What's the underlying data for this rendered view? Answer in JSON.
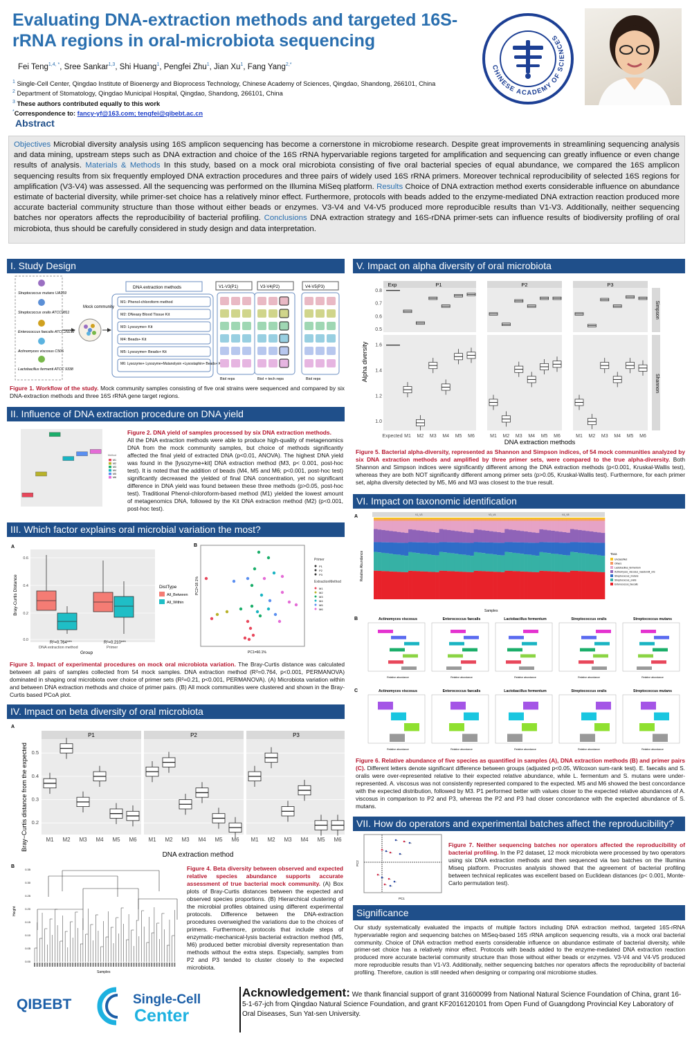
{
  "header": {
    "title": "Evaluating DNA-extraction methods and targeted 16S-rRNA regions in oral-microbiota sequencing",
    "authors": [
      {
        "name": "Fei Teng",
        "sup": "1,4, *"
      },
      {
        "name": "Sree Sankar",
        "sup": "1,3"
      },
      {
        "name": "Shi Huang",
        "sup": "1"
      },
      {
        "name": "Pengfei Zhu",
        "sup": "1"
      },
      {
        "name": "Jian Xu",
        "sup": "1"
      },
      {
        "name": "Fang Yang",
        "sup": "2,*"
      }
    ],
    "affiliations": [
      {
        "num": "1",
        "text": "Single-Cell Center, Qingdao Institute of Bioenergy and Bioprocess Technology, Chinese Academy of Sciences, Qingdao, Shandong, 266101, China"
      },
      {
        "num": "2",
        "text": "Department of Stomatology, Qingdao Municipal Hospital, Qingdao, Shandong, 266101, China"
      },
      {
        "num": "3",
        "text": "These authors contributed equally to this work"
      }
    ],
    "correspondence_label": "Correspondence to:",
    "correspondence_emails": "fancy-yf@163.com; tengfei@qibebt.ac.cn",
    "logo_text": "CHINESE ACADEMY OF SCIENCES"
  },
  "abstract": {
    "heading": "Abstract",
    "k_objectives": "Objectives",
    "objectives": " Microbial diversity analysis using 16S amplicon sequencing has become a cornerstone in microbiome research. Despite great improvements in streamlining sequencing analysis and data mining, upstream steps such as DNA extraction and choice of the 16S rRNA hypervariable regions targeted for amplification and sequencing can greatly influence or even change results of analysis. ",
    "k_methods": "Materials & Methods",
    "methods": " In this study, based on a mock oral microbiota consisting of five oral bacterial species of equal abundance, we compared the 16S amplicon sequencing results from six frequently employed DNA extraction procedures and three pairs of widely used 16S rRNA primers. Moreover technical reproducibility of selected 16S regions for amplification (V3-V4) was assessed. All the sequencing was performed on the Illumina MiSeq platform. ",
    "k_results": "Results",
    "results": " Choice of DNA extraction method exerts considerable influence on abundance estimate of bacterial diversity, while primer-set choice has a relatively minor effect. Furthermore, protocols with beads added to the enzyme-mediated DNA extraction reaction produced more accurate bacterial community structure than those without either beads or enzymes. V3-V4 and V4-V5 produced more reproducible results than V1-V3. Additionally, neither sequencing batches nor operators affects the reproducibility of bacterial profiling. ",
    "k_conclusions": "Conclusions",
    "conclusions": " DNA extraction strategy and 16S-rDNA primer-sets can influence results of biodiversity profiling of oral microbiota, thus should be carefully considered in study design and data interpretation."
  },
  "sections": {
    "s1": "I. Study Design",
    "s2": "II. Influence of DNA extraction procedure on DNA yield",
    "s3": "III. Which factor explains oral microbial variation the most?",
    "s4": "IV. Impact on beta diversity of oral microbiota",
    "s5": "V. Impact on alpha diversity of oral microbiota",
    "s6": "VI. Impact on taxonomic identification",
    "s7": "VII. How do operators and experimental batches affect the reproducibility?",
    "sig": "Significance"
  },
  "fig1": {
    "species": [
      "Streptococcus mutans UA159",
      "Streptococcus oralis ATCC9811",
      "Enterococcus faecalis ATCC29212",
      "Actinomyces viscosus C505",
      "Lactobacillus fermenti ATCC 9338"
    ],
    "mock": "Mock community",
    "methods_title": "DNA extraction methods",
    "methods": [
      "M1: Phenol-chloroform method",
      "M2: DNeasy Blood Tissue Kit",
      "M3: Lysozyme+ Kit",
      "M4: Beads+ Kit",
      "M5: Lysozyme+ Beads+ Kit",
      "M6: Lysozyme+ Lysozyme+Mutanolysin +Lysostaphin+ Beads+ Kit"
    ],
    "regions": [
      "V1-V3(P1)",
      "V3-V4(P2)",
      "V4-V5(P3)"
    ],
    "reps": [
      "Biol reps",
      "Biol + tech reps",
      "Biol reps"
    ],
    "caption_lead": "Figure 1. Workflow of the study.",
    "caption": " Mock community samples consisting of five oral strains were sequenced and compared by six DNA-extraction methods and three 16S rRNA gene target regions."
  },
  "fig2": {
    "caption_lead": "Figure 2. DNA yield of samples processed by six DNA extraction methods.",
    "caption": "All the DNA extraction methods were able to produce high-quality of metagenomics DNA from the mock community samples, but choice of methods significantly affected the final yield of extracted DNA (p<0.01, ANOVA). The highest DNA yield was found in the [lysozyme+kit] DNA extraction method (M3, p< 0.001, post-hoc test). It is noted that the addition of beads (M4, M5 and M6; p<0.001, post-hoc test) significantly decreased the yielded of final DNA concentration, yet no significant difference in DNA yield was found between these three methods (p>0.05, post-hoc test). Traditional Phenol-chloroform-based method (M1) yielded the lowest amount of metagenomics DNA, followed by the Kit DNA extraction method (M2) (p<0.001, post-hoc test)."
  },
  "fig3": {
    "panel_a": "A",
    "panel_b": "B",
    "ylabel": "Bray-Curtis Distance",
    "xlabel": "Group",
    "groups": [
      "DNA extraction method",
      "Primer"
    ],
    "r2": [
      "R²=0.764***",
      "R²=0.210***"
    ],
    "legend_title": "DistType",
    "legend": [
      "All_Between",
      "All_Within"
    ],
    "pcoa_x": "PC1=60.1%",
    "pcoa_y": "PC2=18.1%",
    "caption_lead": "Figure 3. Impact of experimental procedures on mock oral microbiota variation.",
    "caption": " The Bray-Curtis distance was calculated between all pairs of samples collected from 54 mock samples. DNA extraction method (R²=0.764, p<0.001, PERMANOVA) dominated in shaping oral microbiota over choice of primer sets (R²=0.21, p<0.001, PERMANOVA). (A) Microbiota variation within and between DNA extraction methods and choice of primer pairs. (B) All mock communities were clustered and shown in the Bray-Curtis based PCoA plot."
  },
  "fig4": {
    "panel_a": "A",
    "panel_b": "B",
    "facets": [
      "P1",
      "P2",
      "P3"
    ],
    "methods": [
      "M1",
      "M2",
      "M3",
      "M4",
      "M5",
      "M6"
    ],
    "ylabel": "Bray−Curtis distance from the expected",
    "xlabel": "DNA extraction method",
    "yticks": [
      "0.5",
      "0.4",
      "0.3",
      "0.2"
    ],
    "dendro_ylabel": "Height",
    "dendro_xlabel": "Samples",
    "caption_lead": "Figure 4. Beta diversity between observed and expected relative species abundance supports accurate assessment of true bacterial mock community.",
    "caption": " (A) Box plots of Bray-Curtis distances between the expected and observed species proportions. (B) Hierarchical clustering of the microbial profiles obtained using different experimental protocols. Difference between the DNA-extraction procedures overweighed the variations due to the choices of primers. Furthermore, protocols that include steps of enzymatic-mechanical-lysis bacterial extraction method (M5, M6) produced better microbial diversity representation than methods without the extra steps. Especially, samples from P2 and P3 tended to cluster closely to the expected microbiota."
  },
  "fig5": {
    "facets": [
      "Exp",
      "P1",
      "P2",
      "P3"
    ],
    "strips": [
      "Simpson",
      "Shannon"
    ],
    "ylabel": "Alpha diversity",
    "xlabel": "DNA extraction methods",
    "xticks": [
      "Expected",
      "M1",
      "M2",
      "M3",
      "M4",
      "M5",
      "M6"
    ],
    "yticks_top": [
      "0.8",
      "0.7",
      "0.6",
      "0.5"
    ],
    "yticks_bot": [
      "1.6",
      "1.4",
      "1.2",
      "1.0"
    ],
    "caption_lead": "Figure 5. Bacterial alpha-diversity, represented as Shannon and Simpson indices, of 54 mock communities analyzed by six DNA extraction methods and amplified by three primer sets, were compared to the true alpha-diversity.",
    "caption": " Both Shannon and Simpson indices were significantly different among the DNA extraction methods (p<0.001, Kruskal-Wallis test), whereas they are both NOT significantly different among primer sets (p>0.05, Kruskal-Wallis test). Furthermore, for each primer set, alpha diversity detected by M5, M6 and M3 was closest to the true result."
  },
  "fig6": {
    "panel_a": "A",
    "panel_b": "B",
    "panel_c": "C",
    "ylabel": "Relative Abundance",
    "xlabel": "Samples",
    "groups": [
      "V1_V3",
      "V3_V4",
      "V4_V5"
    ],
    "legend_title": "Taxa",
    "legend": [
      "Unclassified",
      "Others",
      "Lactobacillus_fermentum",
      "Actinomyces_viscosus_naeslundii_oris",
      "Streptococcus_mutans",
      "Streptococcus_oralis",
      "Enterococcus_faecalis"
    ],
    "species": [
      "Actinomyces viscosus",
      "Enterococcus faecalis",
      "Lactobacillus fermentum",
      "Streptococcus oralis",
      "Streptococcus mutans"
    ],
    "relab": "Relative abundance",
    "caption_lead": "Figure 6. Relative abundance of five species as quantified in samples (A), DNA extraction methods (B) and primer pairs (C).",
    "caption": " Different letters denote significant difference between groups (adjusted p<0.05, Wilcoxon sum-rank test). E. faecalis and S. oralis were over-represented relative to their expected relative abundance, while L. fermentum and S. mutans were under-represented. A. viscosus was not consistently represented compared to the expected. M5 and M6 showed the best concordance with the expected distribution, followed by M3. P1 performed better with values closer to the expected relative abundances of A. viscosus in comparison to P2 and P3, whereas the P2 and P3 had closer concordance with the expected abundance of S. mutans."
  },
  "fig7": {
    "xlabel": "PC1",
    "ylabel": "PC2",
    "caption_lead": "Figure 7. Neither sequencing batches nor operators affected the reproducibility of bacterial profiling.",
    "caption": " In the P2 dataset, 12 mock microbiota were processed by two operators using six DNA extraction methods and then sequenced via two batches on the Illumina Miseq platform. Procrustes analysis showed that the agreement of bacterial profiling between technical replicates was excellent based on Euclidean distances (p< 0.001, Monte-Carlo permutation test)."
  },
  "significance": "Our study systematically evaluated the impacts of multiple factors including DNA extraction method, targeted 16S-rRNA hypervariable region and sequencing batches on MiSeq-based 16S rRNA amplicon sequencing results, via a mock oral bacterial community. Choice of DNA extraction method exerts considerable influence on abundance estimate of bacterial diversity, while primer-set choice has a relatively minor effect. Protocols with beads added to the enzyme-mediated DNA extraction reaction produced more accurate bacterial community structure than those without either beads or enzymes. V3-V4 and V4-V5 produced more reproducible results than V1-V3. Additionally, neither sequencing batches nor operators affects the reproducibility of bacterial profiling. Therefore, caution is still needed when designing or comparing oral microbiome studies.",
  "footer": {
    "logo1": "QIBEBT",
    "logo2a": "Single-Cell",
    "logo2b": "Center",
    "ack_title": "Acknowledgement:",
    "ack_text": " We thank financial support of grant 31600099 from National Natural Science Foundation of China, grant 16-5-1-67-jch from Qingdao Natural Science Foundation, and grant KF2016120101 from Open Fund of Guangdong Provincial Key Laboratory of Oral Diseases, Sun Yat-sen University."
  },
  "colors": {
    "section_bar": "#1f4f8a",
    "title": "#2a6faf",
    "caption_lead": "#b5172e",
    "m_colors": [
      "#e8475b",
      "#b8b229",
      "#1bae6a",
      "#19b4c2",
      "#5a8ff0",
      "#e46bd6"
    ]
  },
  "chart_data": [
    {
      "type": "scatter",
      "title": "DNA yield",
      "categories": [
        "M1",
        "M2",
        "M3",
        "M4",
        "M5",
        "M6"
      ],
      "values": [
        0.15,
        0.42,
        0.93,
        0.62,
        0.68,
        0.71
      ]
    },
    {
      "type": "box",
      "title": "Beta diversity",
      "facets": [
        "P1",
        "P2",
        "P3"
      ],
      "categories": [
        "M1",
        "M2",
        "M3",
        "M4",
        "M5",
        "M6"
      ],
      "medians": [
        [
          0.37,
          0.52,
          0.29,
          0.4,
          0.24,
          0.23
        ],
        [
          0.42,
          0.46,
          0.28,
          0.33,
          0.22,
          0.18
        ],
        [
          0.4,
          0.48,
          0.25,
          0.34,
          0.19,
          0.19
        ]
      ]
    },
    {
      "type": "box",
      "title": "Alpha diversity",
      "facets": [
        "P1",
        "P2",
        "P3"
      ],
      "categories": [
        "M1",
        "M2",
        "M3",
        "M4",
        "M5",
        "M6"
      ],
      "expected_simpson": 0.8,
      "expected_shannon": 1.6,
      "simpson": [
        [
          0.64,
          0.55,
          0.74,
          0.68,
          0.76,
          0.77
        ],
        [
          0.62,
          0.54,
          0.72,
          0.68,
          0.74,
          0.74
        ],
        [
          0.62,
          0.53,
          0.73,
          0.68,
          0.75,
          0.74
        ]
      ],
      "shannon": [
        [
          1.25,
          0.99,
          1.44,
          1.27,
          1.51,
          1.52
        ],
        [
          1.15,
          1.02,
          1.41,
          1.33,
          1.43,
          1.45
        ],
        [
          1.15,
          1.0,
          1.44,
          1.33,
          1.44,
          1.42
        ]
      ]
    }
  ]
}
